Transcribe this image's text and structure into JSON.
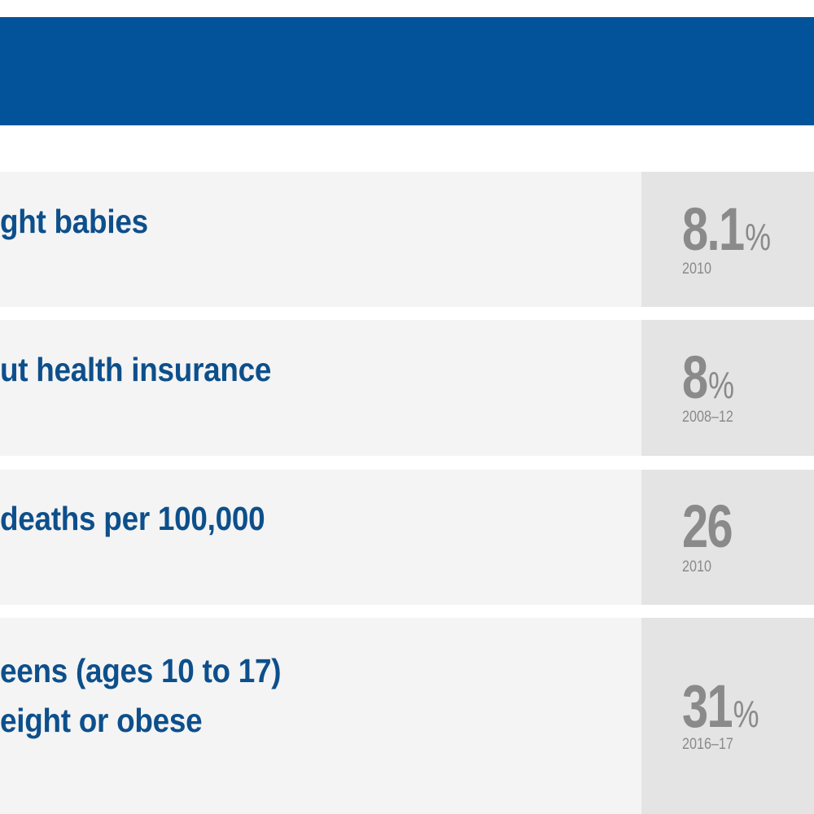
{
  "rows": [
    {
      "label": "ght babies",
      "value": "8.1",
      "unit": "%",
      "year": "2010"
    },
    {
      "label": "ut health insurance",
      "value": "8",
      "unit": "%",
      "year": "2008–12"
    },
    {
      "label": " deaths per 100,000",
      "value": "26",
      "unit": "",
      "year": "2010"
    },
    {
      "label_line1": "eens (ages 10 to 17)",
      "label_line2": "eight or obese",
      "value": "31",
      "unit": "%",
      "year": "2016–17"
    }
  ],
  "colors": {
    "header": "#02539a",
    "label_text": "#0d4f8b",
    "value_text": "#8a8a8a",
    "label_bg": "#f4f4f4",
    "value_bg": "#e4e4e4"
  }
}
